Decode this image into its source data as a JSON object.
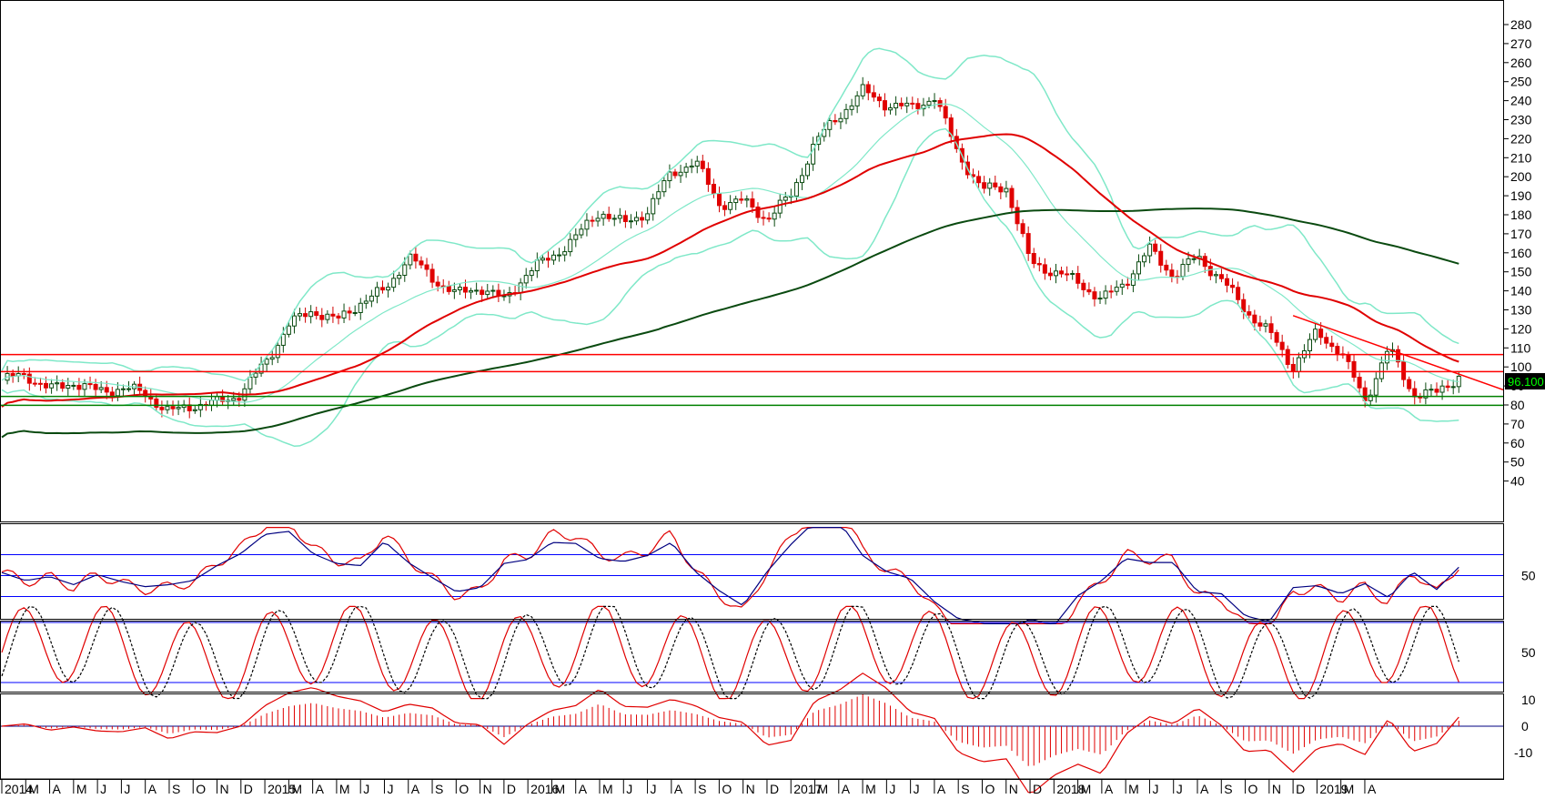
{
  "chart_data": {
    "type": "candlestick",
    "last_price_label": "96.100",
    "x_axis": {
      "labels": [
        "2014",
        "M",
        "A",
        "M",
        "J",
        "J",
        "A",
        "S",
        "O",
        "N",
        "D",
        "2015",
        "M",
        "A",
        "M",
        "J",
        "J",
        "A",
        "S",
        "O",
        "N",
        "D",
        "2016",
        "M",
        "A",
        "M",
        "J",
        "J",
        "A",
        "S",
        "O",
        "N",
        "D",
        "2017",
        "M",
        "A",
        "M",
        "J",
        "J",
        "A",
        "S",
        "O",
        "N",
        "D",
        "2018",
        "M",
        "A",
        "M",
        "J",
        "J",
        "A",
        "S",
        "O",
        "N",
        "D",
        "2019",
        "M",
        "A"
      ],
      "year_labels": [
        "2014",
        "2015",
        "2016",
        "2017",
        "2018",
        "2019"
      ]
    },
    "price_panel": {
      "yticks": [
        40,
        50,
        60,
        70,
        80,
        90,
        100,
        110,
        120,
        130,
        140,
        150,
        160,
        170,
        180,
        190,
        200,
        210,
        220,
        230,
        240,
        250,
        260,
        270,
        280
      ],
      "horizontal_lines": [
        {
          "value": 106.5,
          "color": "#ff0000"
        },
        {
          "value": 97.5,
          "color": "#ff0000"
        },
        {
          "value": 84.5,
          "color": "#008000"
        },
        {
          "value": 79.8,
          "color": "#008000"
        }
      ],
      "ma_short_color": "#e00000",
      "ma_long_color": "#0a4a10",
      "bollinger_color": "#7fe8c8",
      "trendlines": [
        {
          "from": [
            "2018-07",
            127
          ],
          "to": [
            "2019-03",
            88
          ],
          "color": "#ff0000"
        }
      ],
      "close_price_series": [
        [
          "2014-01",
          93
        ],
        [
          "2014-02",
          96
        ],
        [
          "2014-03",
          88
        ],
        [
          "2014-04",
          92
        ],
        [
          "2014-05",
          87
        ],
        [
          "2014-06",
          89
        ],
        [
          "2014-07",
          86
        ],
        [
          "2014-08",
          76
        ],
        [
          "2014-09",
          80
        ],
        [
          "2014-10",
          81
        ],
        [
          "2014-11",
          86
        ],
        [
          "2014-12",
          102
        ],
        [
          "2015-01",
          122
        ],
        [
          "2015-02",
          130
        ],
        [
          "2015-03",
          124
        ],
        [
          "2015-04",
          134
        ],
        [
          "2015-05",
          140
        ],
        [
          "2015-06",
          158
        ],
        [
          "2015-07",
          147
        ],
        [
          "2015-08",
          138
        ],
        [
          "2015-09",
          142
        ],
        [
          "2015-10",
          135
        ],
        [
          "2015-11",
          150
        ],
        [
          "2015-12",
          158
        ],
        [
          "2016-01",
          168
        ],
        [
          "2016-02",
          182
        ],
        [
          "2016-03",
          175
        ],
        [
          "2016-04",
          182
        ],
        [
          "2016-05",
          202
        ],
        [
          "2016-06",
          208
        ],
        [
          "2016-07",
          186
        ],
        [
          "2016-08",
          187
        ],
        [
          "2016-09",
          178
        ],
        [
          "2016-10",
          190
        ],
        [
          "2016-11",
          218
        ],
        [
          "2016-12",
          232
        ],
        [
          "2017-01",
          245
        ],
        [
          "2017-02",
          238
        ],
        [
          "2017-03",
          236
        ],
        [
          "2017-04",
          242
        ],
        [
          "2017-05",
          212
        ],
        [
          "2017-06",
          193
        ],
        [
          "2017-07",
          195
        ],
        [
          "2017-08",
          155
        ],
        [
          "2017-09",
          150
        ],
        [
          "2017-10",
          145
        ],
        [
          "2017-11",
          135
        ],
        [
          "2017-12",
          145
        ],
        [
          "2018-01",
          162
        ],
        [
          "2018-02",
          148
        ],
        [
          "2018-03",
          158
        ],
        [
          "2018-04",
          146
        ],
        [
          "2018-05",
          130
        ],
        [
          "2018-06",
          118
        ],
        [
          "2018-07",
          100
        ],
        [
          "2018-08",
          118
        ],
        [
          "2018-09",
          108
        ],
        [
          "2018-10",
          82
        ],
        [
          "2018-11",
          110
        ],
        [
          "2018-12",
          86
        ],
        [
          "2019-01",
          86
        ],
        [
          "2019-02",
          96
        ]
      ]
    },
    "rsi_panel": {
      "ytick_labels": [
        "50"
      ],
      "levels": [
        30,
        50,
        70
      ],
      "level_color": "#0000ff",
      "series_colors": [
        "#e00000",
        "#000080"
      ]
    },
    "stochastic_panel": {
      "ytick_labels": [
        "50"
      ],
      "levels": [
        20,
        80
      ],
      "level_color": "#0000ff",
      "series_colors": [
        "#e00000",
        "#000000"
      ]
    },
    "macd_panel": {
      "ytick_labels": [
        "10",
        "0",
        "-10"
      ],
      "color": "#e00000"
    }
  }
}
